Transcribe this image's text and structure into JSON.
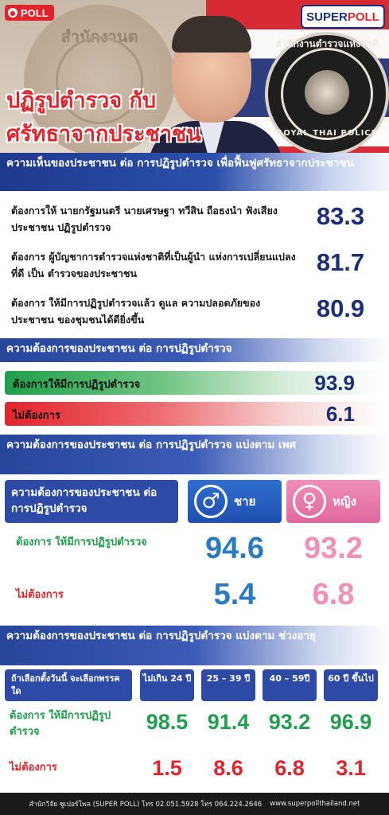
{
  "header": {
    "poll_badge": "POLL",
    "superpoll_logo_a": "SUPER ",
    "superpoll_logo_b": "POLL",
    "title_line1": "ปฏิรูปตำรวจ กับ",
    "title_line2": "ศรัทธาจากประชาชน",
    "emblem_left_text": "สำนักงานต",
    "seal_top_text": "สำนักงานตำรวจแห่งชาติ",
    "seal_bottom_text": "ROYAL THAI POLICE"
  },
  "opinion": {
    "heading": "ความเห็นของประชาชน ต่อ การปฏิรูปตำรวจ เพื่อฟื้นฟูศรัทธาจากประชาชน",
    "items": [
      {
        "label": "ต้องการให้ นายกรัฐมนตรี นายเศรษฐา ทวีสิน ถือธงนำ ฟังเสียงประชาชน ปฏิรูปตำรวจ",
        "value": "83.3"
      },
      {
        "label": "ต้องการ ผู้บัญชาการตำรวจแห่งชาติที่เป็นผู้นำ แห่งการเปลี่ยนแปลงที่ดี เป็น ตำรวจของประชาชน",
        "value": "81.7"
      },
      {
        "label": "ต้องการ ให้มีการปฏิรูปตำรวจแล้ว ดูแล ความปลอดภัยของประชาชน ของชุมชนได้ดียิ่งขึ้น",
        "value": "80.9"
      }
    ]
  },
  "need": {
    "heading": "ความต้องการของประชาชน ต่อ การปฏิรูปตำรวจ",
    "want_label": "ต้องการให้มีการปฏิรูปตำรวจ",
    "want_value": "93.9",
    "not_want_label": "ไม่ต้องการ",
    "not_want_value": "6.1",
    "colors": {
      "green": "#1f9f4b",
      "red": "#e3232c"
    }
  },
  "gender": {
    "heading": "ความต้องการของประชาชน ต่อ การปฏิรูปตำรวจ แบ่งตาม เพศ",
    "box_title": "ความต้องการของประชาชน ต่อ การปฏิรูปตำรวจ",
    "male_label": "ชาย",
    "female_label": "หญิง",
    "want_label": "ต้องการ ให้มีการปฏิรูปตำรวจ",
    "not_want_label": "ไม่ต้องการ",
    "male_want": "94.6",
    "female_want": "93.2",
    "male_not": "5.4",
    "female_not": "6.8"
  },
  "age": {
    "heading": "ความต้องการของประชาชน ต่อ การปฏิรูปตำรวจ แบ่งตาม ช่วงอายุ",
    "box_title": "ถ้าเลือกตั้งวันนี้ จะเลือกพรรคใด",
    "groups": [
      "ไม่เกิน 24 ปี",
      "25 – 39 ปี",
      "40 – 59ปี",
      "60 ปี ขึ้นไป"
    ],
    "want_label": "ต้องการ ให้มีการปฏิรูปตำรวจ",
    "not_want_label": "ไม่ต้องการ",
    "want_values": [
      "98.5",
      "91.4",
      "93.2",
      "96.9"
    ],
    "not_values": [
      "1.5",
      "8.6",
      "6.8",
      "3.1"
    ]
  },
  "footer": {
    "org": "สำนักวิจัย ซูเปอร์โพล (SUPER POLL) โทร 02.051.5928 โทร 064.224.2646",
    "site": "www.superpollthailand.net"
  }
}
